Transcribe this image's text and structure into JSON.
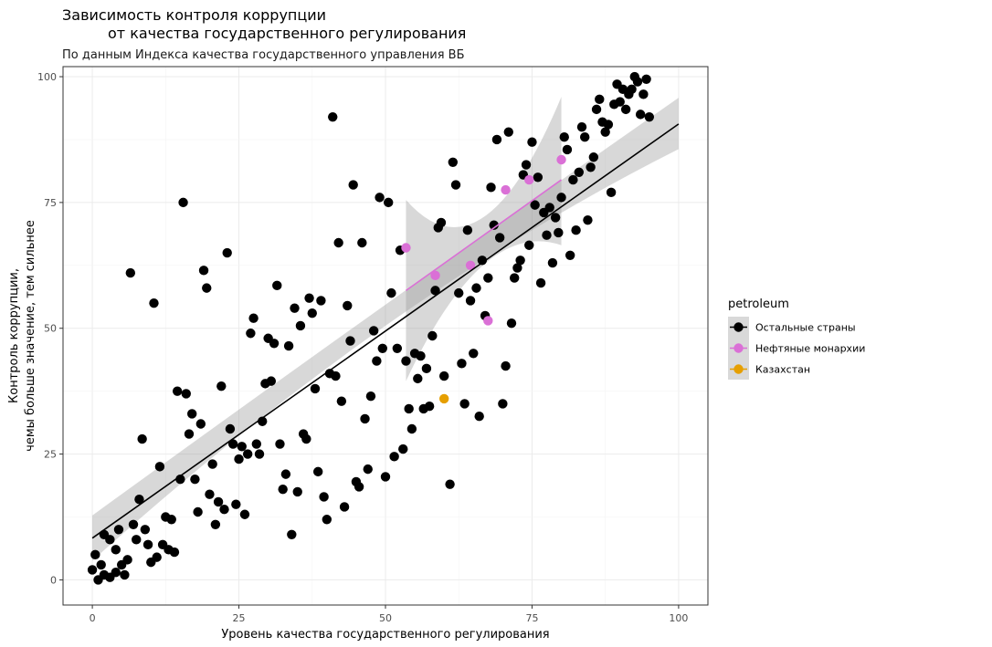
{
  "chart_data": {
    "type": "scatter",
    "title_line1": "Зависимость контроля коррупции",
    "title_line2": "от качества государственного регулирования",
    "subtitle": "По данным Индекса качества государственного управления ВБ",
    "xlabel": "Уровень качества государственного регулирования",
    "ylabel_line1": "Контроль коррупции,",
    "ylabel_line2": "чемы больше значение, тем сильнее",
    "xlim": [
      -5,
      105
    ],
    "ylim": [
      -5,
      102
    ],
    "x_ticks": [
      0,
      25,
      50,
      75,
      100
    ],
    "y_ticks": [
      0,
      25,
      50,
      75,
      100
    ],
    "grid": true,
    "legend": {
      "title": "petroleum",
      "position": "right",
      "entries": [
        {
          "name": "Остальные страны",
          "color": "#000000"
        },
        {
          "name": "Нефтяные монархии",
          "color": "#DA70D6"
        },
        {
          "name": "Казахстан",
          "color": "#E69F00"
        }
      ]
    },
    "series": [
      {
        "name": "Остальные страны",
        "color": "#000000",
        "points": [
          [
            0.5,
            5
          ],
          [
            0,
            2
          ],
          [
            1,
            0
          ],
          [
            1.5,
            3
          ],
          [
            2,
            9
          ],
          [
            2,
            1
          ],
          [
            3,
            0.5
          ],
          [
            3,
            8
          ],
          [
            4,
            6
          ],
          [
            4,
            1.5
          ],
          [
            4.5,
            10
          ],
          [
            5,
            3
          ],
          [
            5.5,
            1
          ],
          [
            6,
            4
          ],
          [
            6.5,
            61
          ],
          [
            7,
            11
          ],
          [
            7.5,
            8
          ],
          [
            8,
            16
          ],
          [
            8.5,
            28
          ],
          [
            9,
            10
          ],
          [
            9.5,
            7
          ],
          [
            10,
            3.5
          ],
          [
            10.5,
            55
          ],
          [
            11,
            4.5
          ],
          [
            11.5,
            22.5
          ],
          [
            12,
            7
          ],
          [
            12.5,
            12.5
          ],
          [
            13,
            6
          ],
          [
            13.5,
            12
          ],
          [
            14,
            5.5
          ],
          [
            14.5,
            37.5
          ],
          [
            15,
            20
          ],
          [
            15.5,
            75
          ],
          [
            16,
            37
          ],
          [
            16.5,
            29
          ],
          [
            17,
            33
          ],
          [
            17.5,
            20
          ],
          [
            18,
            13.5
          ],
          [
            18.5,
            31
          ],
          [
            19,
            61.5
          ],
          [
            19.5,
            58
          ],
          [
            20,
            17
          ],
          [
            20.5,
            23
          ],
          [
            21,
            11
          ],
          [
            21.5,
            15.5
          ],
          [
            22,
            38.5
          ],
          [
            22.5,
            14
          ],
          [
            23,
            65
          ],
          [
            23.5,
            30
          ],
          [
            24,
            27
          ],
          [
            24.5,
            15
          ],
          [
            25,
            24
          ],
          [
            25.5,
            26.5
          ],
          [
            26,
            13
          ],
          [
            26.5,
            25
          ],
          [
            27,
            49
          ],
          [
            27.5,
            52
          ],
          [
            28,
            27
          ],
          [
            28.5,
            25
          ],
          [
            29,
            31.5
          ],
          [
            29.5,
            39
          ],
          [
            30,
            48
          ],
          [
            30.5,
            39.5
          ],
          [
            31,
            47
          ],
          [
            31.5,
            58.5
          ],
          [
            32,
            27
          ],
          [
            32.5,
            18
          ],
          [
            33,
            21
          ],
          [
            33.5,
            46.5
          ],
          [
            34,
            9
          ],
          [
            34.5,
            54
          ],
          [
            35,
            17.5
          ],
          [
            35.5,
            50.5
          ],
          [
            36,
            29
          ],
          [
            36.5,
            28
          ],
          [
            37,
            56
          ],
          [
            37.5,
            53
          ],
          [
            38,
            38
          ],
          [
            38.5,
            21.5
          ],
          [
            39,
            55.5
          ],
          [
            39.5,
            16.5
          ],
          [
            40,
            12
          ],
          [
            40.5,
            41
          ],
          [
            41,
            92
          ],
          [
            41.5,
            40.5
          ],
          [
            42,
            67
          ],
          [
            42.5,
            35.5
          ],
          [
            43,
            14.5
          ],
          [
            43.5,
            54.5
          ],
          [
            44,
            47.5
          ],
          [
            44.5,
            78.5
          ],
          [
            45,
            19.5
          ],
          [
            45.5,
            18.5
          ],
          [
            46,
            67
          ],
          [
            46.5,
            32
          ],
          [
            47,
            22
          ],
          [
            47.5,
            36.5
          ],
          [
            48,
            49.5
          ],
          [
            48.5,
            43.5
          ],
          [
            49,
            76
          ],
          [
            49.5,
            46
          ],
          [
            50,
            20.5
          ],
          [
            50.5,
            75
          ],
          [
            51,
            57
          ],
          [
            51.5,
            24.5
          ],
          [
            52,
            46
          ],
          [
            52.5,
            65.5
          ],
          [
            53,
            26
          ],
          [
            53.5,
            43.5
          ],
          [
            54,
            34
          ],
          [
            54.5,
            30
          ],
          [
            55,
            45
          ],
          [
            55.5,
            40
          ],
          [
            56,
            44.5
          ],
          [
            56.5,
            34
          ],
          [
            57,
            42
          ],
          [
            57.5,
            34.5
          ],
          [
            58,
            48.5
          ],
          [
            58.5,
            57.5
          ],
          [
            59,
            70
          ],
          [
            59.5,
            71
          ],
          [
            60,
            40.5
          ],
          [
            61,
            19
          ],
          [
            61.5,
            83
          ],
          [
            62,
            78.5
          ],
          [
            62.5,
            57
          ],
          [
            63,
            43
          ],
          [
            63.5,
            35
          ],
          [
            64,
            69.5
          ],
          [
            64.5,
            55.5
          ],
          [
            65,
            45
          ],
          [
            65.5,
            58
          ],
          [
            66,
            32.5
          ],
          [
            66.5,
            63.5
          ],
          [
            67,
            52.5
          ],
          [
            67.5,
            60
          ],
          [
            68,
            78
          ],
          [
            68.5,
            70.5
          ],
          [
            69,
            87.5
          ],
          [
            69.5,
            68
          ],
          [
            70,
            35
          ],
          [
            70.5,
            42.5
          ],
          [
            71,
            89
          ],
          [
            71.5,
            51
          ],
          [
            72,
            60
          ],
          [
            72.5,
            62
          ],
          [
            73,
            63.5
          ],
          [
            73.5,
            80.5
          ],
          [
            74,
            82.5
          ],
          [
            74.5,
            66.5
          ],
          [
            75,
            87
          ],
          [
            75.5,
            74.5
          ],
          [
            76,
            80
          ],
          [
            76.5,
            59
          ],
          [
            77,
            73
          ],
          [
            77.5,
            68.5
          ],
          [
            78,
            74
          ],
          [
            78.5,
            63
          ],
          [
            79,
            72
          ],
          [
            79.5,
            69
          ],
          [
            80,
            76
          ],
          [
            80.5,
            88
          ],
          [
            81,
            85.5
          ],
          [
            81.5,
            64.5
          ],
          [
            82,
            79.5
          ],
          [
            82.5,
            69.5
          ],
          [
            83,
            81
          ],
          [
            83.5,
            90
          ],
          [
            84,
            88
          ],
          [
            84.5,
            71.5
          ],
          [
            85,
            82
          ],
          [
            85.5,
            84
          ],
          [
            86,
            93.5
          ],
          [
            86.5,
            95.5
          ],
          [
            87,
            91
          ],
          [
            87.5,
            89
          ],
          [
            88,
            90.5
          ],
          [
            88.5,
            77
          ],
          [
            89,
            94.5
          ],
          [
            89.5,
            98.5
          ],
          [
            90,
            95
          ],
          [
            90.5,
            97.5
          ],
          [
            91,
            93.5
          ],
          [
            91.5,
            96.5
          ],
          [
            92,
            97.5
          ],
          [
            92.5,
            100
          ],
          [
            93,
            99
          ],
          [
            93.5,
            92.5
          ],
          [
            94,
            96.5
          ],
          [
            94.5,
            99.5
          ],
          [
            95,
            92
          ]
        ]
      },
      {
        "name": "Нефтяные монархии",
        "color": "#DA70D6",
        "points": [
          [
            53.5,
            66
          ],
          [
            58.5,
            60.5
          ],
          [
            64.5,
            62.5
          ],
          [
            67.5,
            51.5
          ],
          [
            70.5,
            77.5
          ],
          [
            74.5,
            79.5
          ],
          [
            80,
            83.5
          ]
        ]
      },
      {
        "name": "Казахстан",
        "color": "#E69F00",
        "points": [
          [
            60,
            36
          ]
        ]
      }
    ],
    "trendlines": [
      {
        "name": "Остальные страны",
        "color": "#000000",
        "x": [
          0,
          100
        ],
        "y": [
          8.3,
          90.6
        ],
        "band_x": [
          0,
          50,
          100
        ],
        "band_lower": [
          3.8,
          50.5,
          85.6
        ],
        "band_upper": [
          12.8,
          54.7,
          95.8
        ]
      },
      {
        "name": "Нефтяные монархии",
        "color": "#DA70D6",
        "x": [
          53.5,
          80
        ],
        "y": [
          57.5,
          79.5
        ],
        "band_x": [
          53.5,
          66.5,
          80
        ],
        "band_lower": [
          39.5,
          62.5,
          66.5
        ],
        "band_upper": [
          75.5,
          72.0,
          96.0
        ]
      }
    ]
  }
}
